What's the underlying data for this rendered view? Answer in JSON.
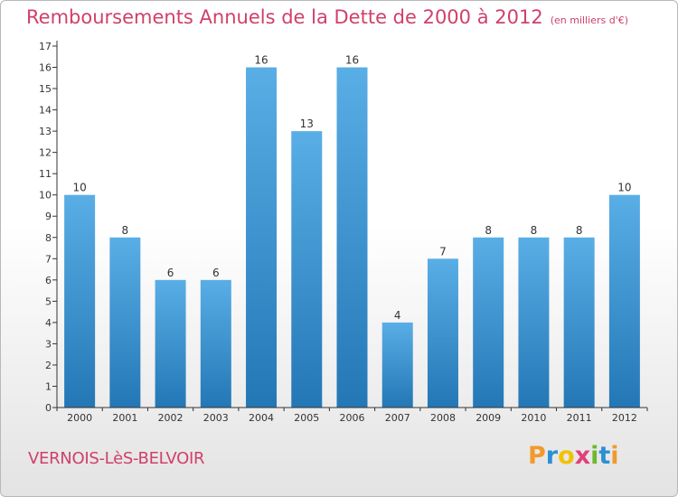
{
  "title": "Remboursements Annuels de la Dette de 2000 à 2012",
  "subtitle": "(en milliers d'€)",
  "town": "VERNOIS-LèS-BELVOIR",
  "logo": {
    "letters": [
      "P",
      "r",
      "o",
      "x",
      "i",
      "t",
      "i"
    ],
    "colors": [
      "#f19a2c",
      "#2c8fd4",
      "#f2c200",
      "#e0407b",
      "#70b82e",
      "#2c8fd4",
      "#f19a2c"
    ]
  },
  "colors": {
    "title": "#d0406a",
    "bar_top": "#5aaee6",
    "bar_bottom": "#2377b5",
    "axis": "#333333"
  },
  "chart_data": {
    "type": "bar",
    "title": "Remboursements Annuels de la Dette de 2000 à 2012",
    "subtitle": "(en milliers d'€)",
    "categories": [
      "2000",
      "2001",
      "2002",
      "2003",
      "2004",
      "2005",
      "2006",
      "2007",
      "2008",
      "2009",
      "2010",
      "2011",
      "2012"
    ],
    "values": [
      10,
      8,
      6,
      6,
      16,
      13,
      16,
      4,
      7,
      8,
      8,
      8,
      10
    ],
    "ylim": [
      0,
      17
    ],
    "yticks": [
      0,
      1,
      2,
      3,
      4,
      5,
      6,
      7,
      8,
      9,
      10,
      11,
      12,
      13,
      14,
      15,
      16,
      17
    ],
    "grid": false,
    "legend": "none",
    "data_labels": true
  }
}
